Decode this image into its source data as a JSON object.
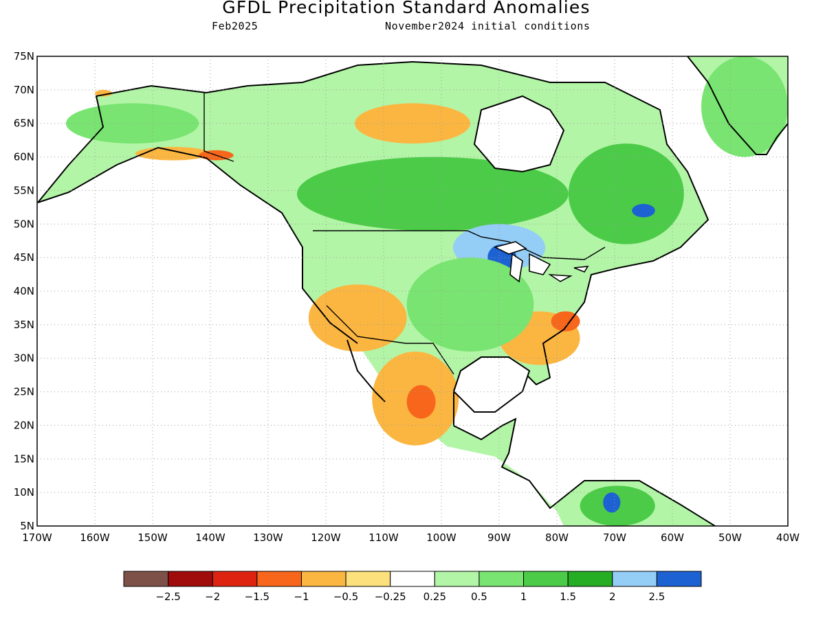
{
  "header": {
    "title": "GFDL Precipitation Standard Anomalies",
    "subtitle_left": "Feb2025",
    "subtitle_right": "November2024 initial conditions"
  },
  "map": {
    "projection": "equirectangular",
    "lon_range": [
      -170,
      -40
    ],
    "lat_range": [
      5,
      75
    ],
    "lat_tick_labels": [
      "75N",
      "70N",
      "65N",
      "60N",
      "55N",
      "50N",
      "45N",
      "40N",
      "35N",
      "30N",
      "25N",
      "20N",
      "15N",
      "10N",
      "5N"
    ],
    "lon_tick_labels": [
      "170W",
      "160W",
      "150W",
      "140W",
      "130W",
      "120W",
      "110W",
      "100W",
      "90W",
      "80W",
      "70W",
      "60W",
      "50W",
      "40W"
    ],
    "gridlines": "dotted"
  },
  "colorbar": {
    "labels": [
      "-2.5",
      "-2",
      "-1.5",
      "-1",
      "-0.5",
      "-0.25",
      "0.25",
      "0.5",
      "1",
      "1.5",
      "2",
      "2.5"
    ],
    "colors": [
      "#7d5148",
      "#a00c0c",
      "#de2410",
      "#f7661a",
      "#fbb641",
      "#fbe07b",
      "#ffffff",
      "#b3f5a7",
      "#79e471",
      "#4ccb48",
      "#25ad23",
      "#94cdf6",
      "#1c62d2"
    ]
  },
  "regions": [
    {
      "name": "alaska-wet",
      "color": "#79e471",
      "lon": [
        -165,
        -142
      ],
      "lat": [
        62,
        68
      ]
    },
    {
      "name": "alaska-dry-north",
      "color": "#fbb641",
      "lon": [
        -160,
        -157
      ],
      "lat": [
        69,
        70
      ]
    },
    {
      "name": "alaska-dry-south",
      "color": "#fbb641",
      "lon": [
        -153,
        -140
      ],
      "lat": [
        59.5,
        61.5
      ]
    },
    {
      "name": "yukon-coast-dry",
      "color": "#f7661a",
      "lon": [
        -142,
        -136
      ],
      "lat": [
        59.5,
        61
      ]
    },
    {
      "name": "canada-arctic-dry",
      "color": "#fbb641",
      "lon": [
        -115,
        -95
      ],
      "lat": [
        62,
        68
      ]
    },
    {
      "name": "canada-central-wet",
      "color": "#4ccb48",
      "lon": [
        -125,
        -78
      ],
      "lat": [
        49,
        60
      ]
    },
    {
      "name": "quebec-wet",
      "color": "#4ccb48",
      "lon": [
        -78,
        -58
      ],
      "lat": [
        47,
        62
      ]
    },
    {
      "name": "great-lakes-blue",
      "color": "#94cdf6",
      "lon": [
        -98,
        -82
      ],
      "lat": [
        43,
        50
      ]
    },
    {
      "name": "great-lakes-deep",
      "color": "#1c62d2",
      "lon": [
        -92,
        -87
      ],
      "lat": [
        43,
        47
      ]
    },
    {
      "name": "labrador-deep",
      "color": "#1c62d2",
      "lon": [
        -67,
        -63
      ],
      "lat": [
        51,
        53
      ]
    },
    {
      "name": "sw-us-dry",
      "color": "#fbb641",
      "lon": [
        -123,
        -106
      ],
      "lat": [
        31,
        41
      ]
    },
    {
      "name": "mexico-dry",
      "color": "#fbb641",
      "lon": [
        -112,
        -97
      ],
      "lat": [
        17,
        31
      ]
    },
    {
      "name": "mexico-core",
      "color": "#f7661a",
      "lon": [
        -106,
        -101
      ],
      "lat": [
        21,
        26
      ]
    },
    {
      "name": "southeast-dry",
      "color": "#fbb641",
      "lon": [
        -90,
        -76
      ],
      "lat": [
        29,
        37
      ]
    },
    {
      "name": "nc-core",
      "color": "#f7661a",
      "lon": [
        -81,
        -76
      ],
      "lat": [
        34,
        37
      ]
    },
    {
      "name": "central-us-wet",
      "color": "#79e471",
      "lon": [
        -106,
        -84
      ],
      "lat": [
        31,
        45
      ]
    },
    {
      "name": "greenland-wet",
      "color": "#79e471",
      "lon": [
        -55,
        -40
      ],
      "lat": [
        60,
        75
      ]
    },
    {
      "name": "venezuela-wet",
      "color": "#4ccb48",
      "lon": [
        -76,
        -63
      ],
      "lat": [
        5,
        11
      ]
    },
    {
      "name": "venezuela-blue",
      "color": "#1c62d2",
      "lon": [
        -72,
        -69
      ],
      "lat": [
        7,
        10
      ]
    }
  ]
}
